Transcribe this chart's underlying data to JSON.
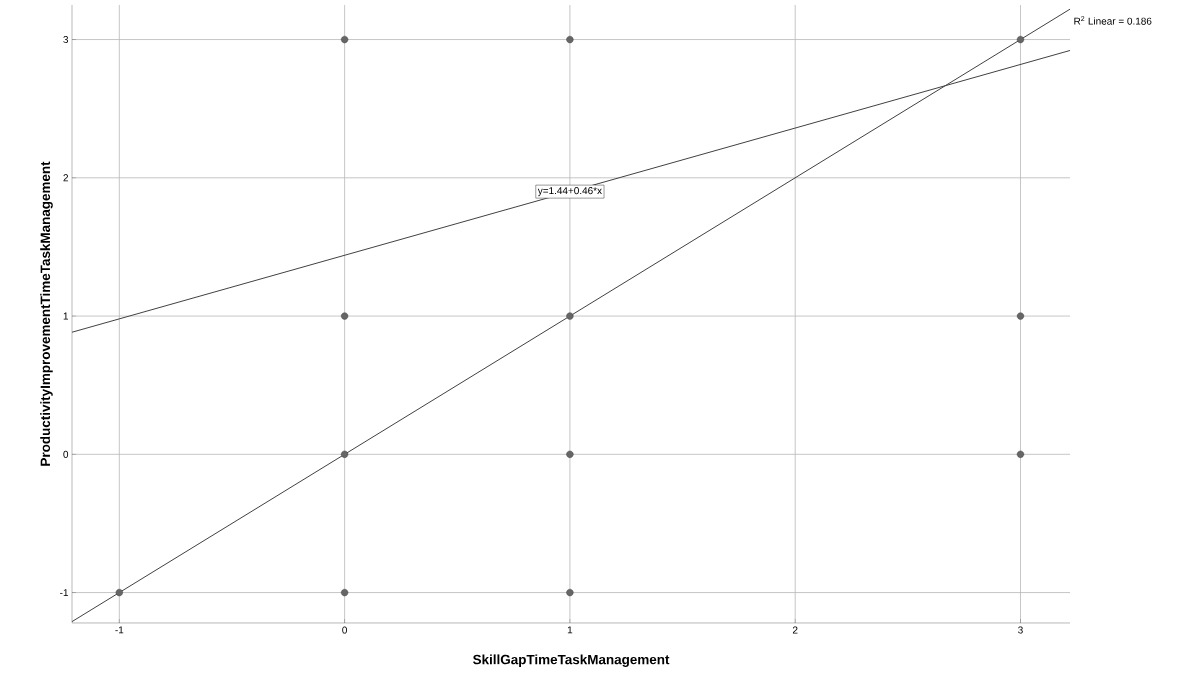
{
  "chart_data": {
    "type": "scatter",
    "xlabel": "SkillGapTimeTaskManagement",
    "ylabel": "ProductivityImprovementTimeTaskManagement",
    "xlim": [
      -1.21,
      3.22
    ],
    "ylim": [
      -1.22,
      3.25
    ],
    "xticks": [
      -1,
      0,
      1,
      2,
      3
    ],
    "yticks": [
      -1,
      0,
      1,
      2,
      3
    ],
    "grid": true,
    "marker": "circle",
    "series": [
      {
        "color": "#666666",
        "x": [
          -1,
          0,
          0,
          0,
          0,
          1,
          1,
          1,
          1,
          3,
          3,
          3
        ],
        "values": [
          -1,
          3,
          1,
          0,
          -1,
          3,
          1,
          0,
          -1,
          3,
          1,
          0
        ]
      },
      {
        "type": "line",
        "marker": "none",
        "color": "#404040",
        "x": [
          -1.21,
          3.22
        ],
        "values": [
          0.883,
          2.921
        ]
      },
      {
        "type": "line",
        "marker": "none",
        "color": "#404040",
        "x": [
          -1.21,
          3.22
        ],
        "values": [
          -1.21,
          3.22
        ]
      }
    ],
    "annotations": [
      {
        "text": "y=1.44+0.46*x",
        "x": 1.0,
        "y": 1.9
      },
      "R$^{2}$ Linear = 0.186"
    ]
  }
}
